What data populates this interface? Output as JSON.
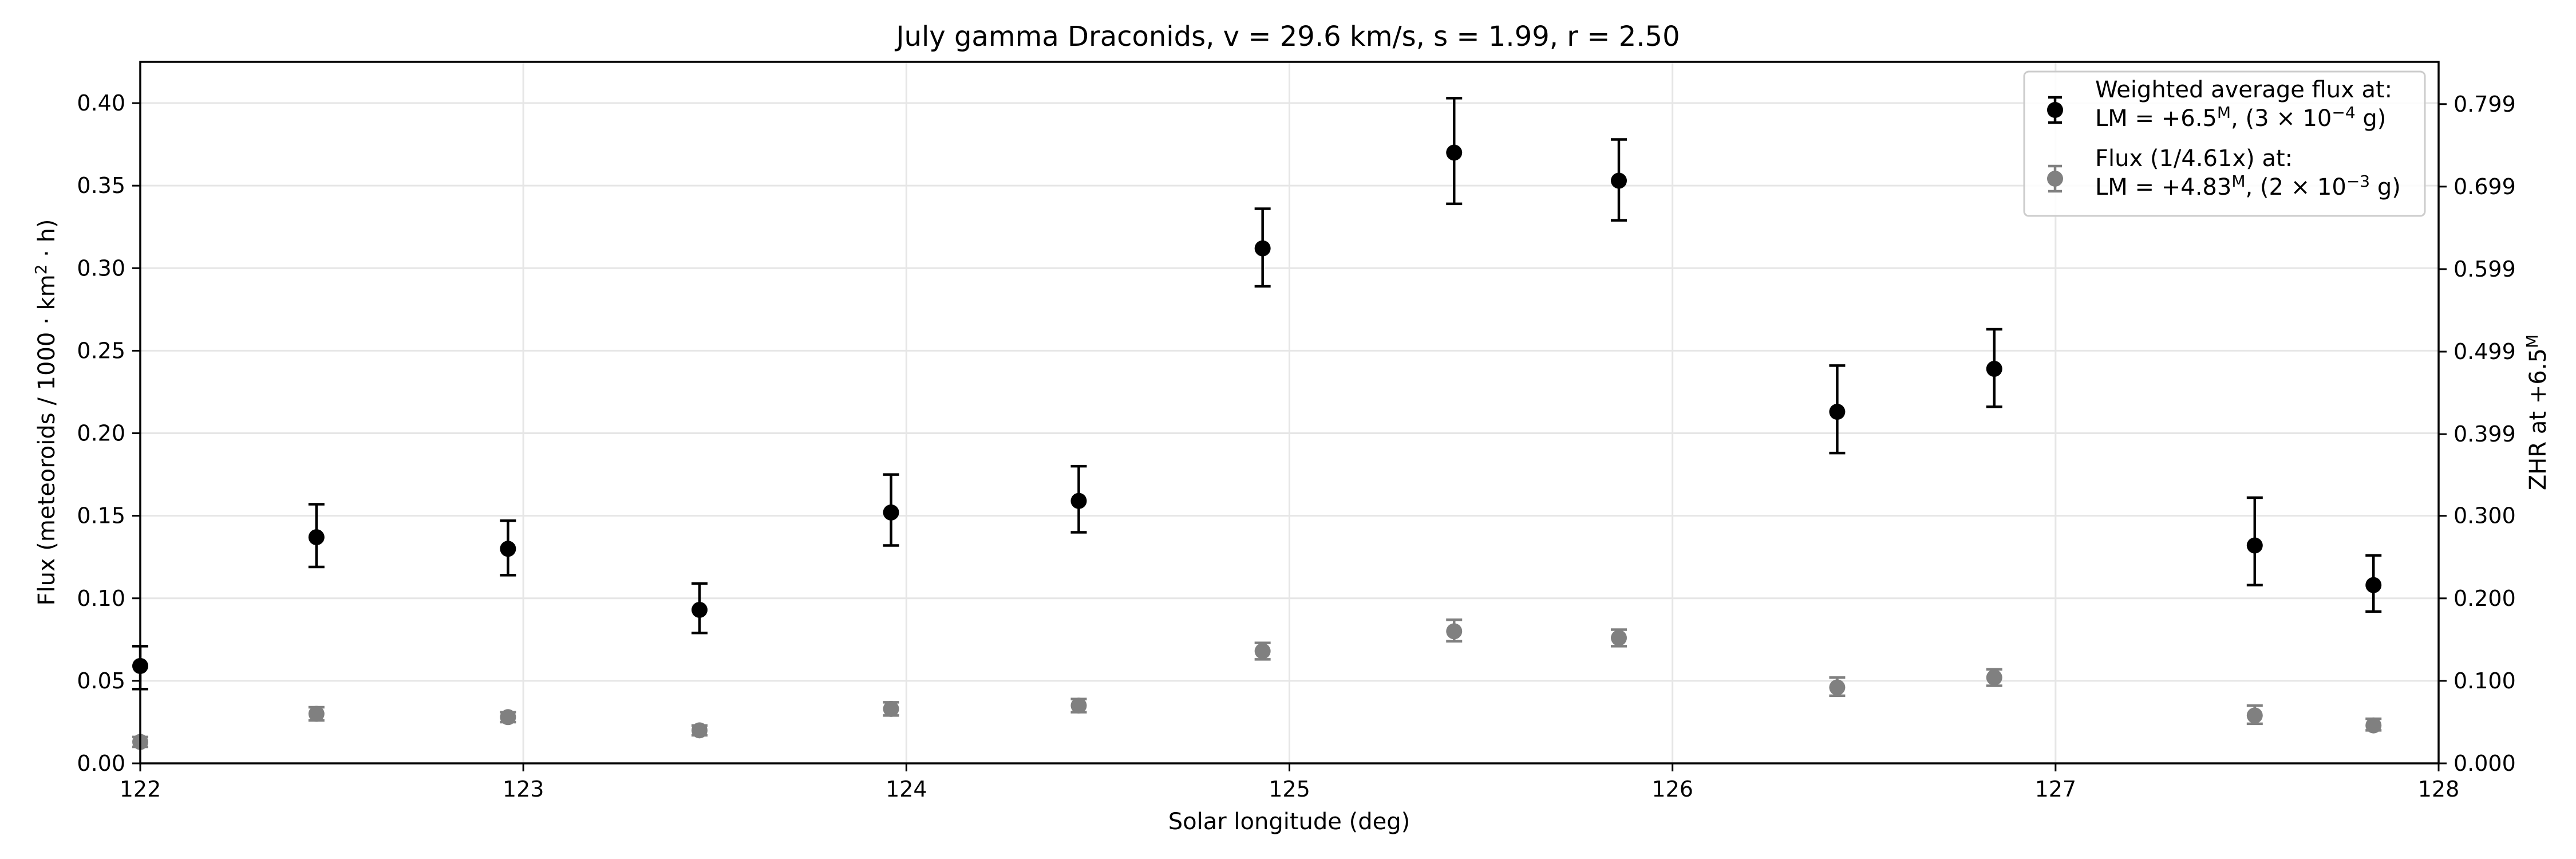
{
  "chart_data": {
    "type": "scatter",
    "title": "July gamma Draconids, v = 29.6 km/s, s = 1.99, r = 2.50",
    "xlabel": "Solar longitude (deg)",
    "ylabel": "Flux (meteoroids / 1000 · km² · h)",
    "ylabel2": "ZHR at +6.5ᴹ",
    "xlim": [
      122,
      128
    ],
    "ylim": [
      0,
      0.425
    ],
    "ylim2": [
      0,
      0.8502
    ],
    "xticks": [
      122,
      123,
      124,
      125,
      126,
      127,
      128
    ],
    "xtick_labels": [
      "122",
      "123",
      "124",
      "125",
      "126",
      "127",
      "128"
    ],
    "yticks": [
      0.0,
      0.05,
      0.1,
      0.15,
      0.2,
      0.25,
      0.3,
      0.35,
      0.4
    ],
    "ytick_labels": [
      "0.00",
      "0.05",
      "0.10",
      "0.15",
      "0.20",
      "0.25",
      "0.30",
      "0.35",
      "0.40"
    ],
    "yticks2": [
      0.0,
      0.1,
      0.2,
      0.3,
      0.399,
      0.499,
      0.599,
      0.699,
      0.799
    ],
    "ytick2_labels": [
      "0.000",
      "0.100",
      "0.200",
      "0.300",
      "0.399",
      "0.499",
      "0.599",
      "0.699",
      "0.799"
    ],
    "grid": true,
    "legend_position": "top-right",
    "series": [
      {
        "legend_line1": "Weighted average flux at:",
        "legend_line2_prefix": "LM = +6.5",
        "legend_line2_sup": "M",
        "legend_line2_mid": ", (3 × 10",
        "legend_line2_exp": "−4",
        "legend_line2_suffix": " g)",
        "color": "#000000",
        "x": [
          122.0,
          122.46,
          122.96,
          123.46,
          123.96,
          124.45,
          124.93,
          125.43,
          125.86,
          126.43,
          126.84,
          127.52,
          127.83
        ],
        "y": [
          0.059,
          0.137,
          0.13,
          0.093,
          0.152,
          0.159,
          0.312,
          0.37,
          0.353,
          0.213,
          0.239,
          0.132,
          0.108
        ],
        "err_low": [
          0.014,
          0.018,
          0.016,
          0.014,
          0.02,
          0.019,
          0.023,
          0.031,
          0.024,
          0.025,
          0.023,
          0.024,
          0.016
        ],
        "err_high": [
          0.012,
          0.02,
          0.017,
          0.016,
          0.023,
          0.021,
          0.024,
          0.033,
          0.025,
          0.028,
          0.024,
          0.029,
          0.018
        ]
      },
      {
        "legend_line1": "Flux (1/4.61x) at:",
        "legend_line2_prefix": "LM = +4.83",
        "legend_line2_sup": "M",
        "legend_line2_mid": ", (2 × 10",
        "legend_line2_exp": "−3",
        "legend_line2_suffix": " g)",
        "color": "#808080",
        "x": [
          122.0,
          122.46,
          122.96,
          123.46,
          123.96,
          124.45,
          124.93,
          125.43,
          125.86,
          126.43,
          126.84,
          127.52,
          127.83
        ],
        "y": [
          0.013,
          0.03,
          0.028,
          0.02,
          0.033,
          0.035,
          0.068,
          0.08,
          0.076,
          0.046,
          0.052,
          0.029,
          0.023
        ],
        "err_low": [
          0.003,
          0.004,
          0.003,
          0.003,
          0.004,
          0.004,
          0.005,
          0.006,
          0.005,
          0.005,
          0.005,
          0.005,
          0.003
        ],
        "err_high": [
          0.003,
          0.004,
          0.003,
          0.003,
          0.004,
          0.004,
          0.005,
          0.007,
          0.005,
          0.006,
          0.005,
          0.006,
          0.004
        ]
      }
    ]
  }
}
